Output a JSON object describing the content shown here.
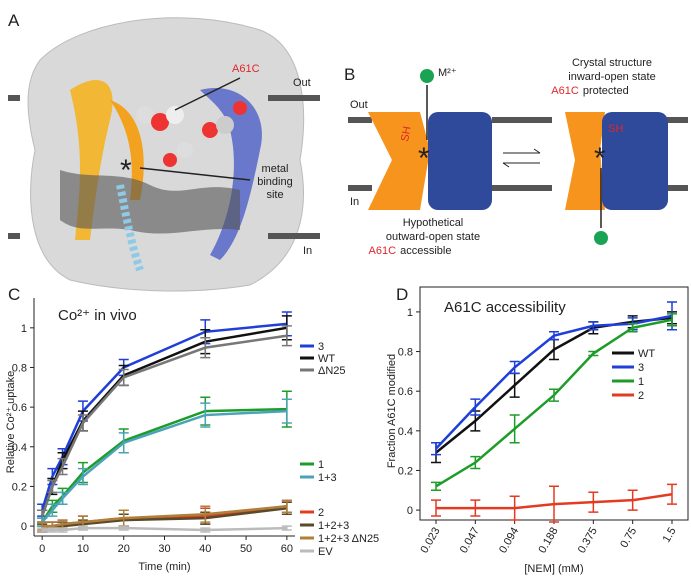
{
  "panels": {
    "A": {
      "letter": "A",
      "out": "Out",
      "in": "In",
      "mutant": "A61C",
      "asterisk": "*",
      "site": [
        "metal",
        "binding",
        "site"
      ]
    },
    "B": {
      "letter": "B",
      "out": "Out",
      "in": "In",
      "ion": "M²⁺",
      "sh": [
        "SH",
        "SH"
      ],
      "asterisk": [
        "*",
        "*"
      ],
      "inward": [
        "Crystal structure",
        "inward-open state",
        "A61C",
        "protected"
      ],
      "outward": [
        "Hypothetical",
        "outward-open state",
        "A61C",
        "accessible"
      ]
    },
    "C": {
      "letter": "C"
    },
    "D": {
      "letter": "D"
    }
  },
  "chart_data": [
    {
      "type": "line",
      "title": "Co²⁺ in vivo",
      "x_label": "Time (min)",
      "y_label": "Relative Co²⁺ uptake",
      "x": [
        0,
        2.5,
        5,
        10,
        20,
        40,
        60
      ],
      "xlim": [
        -2,
        62
      ],
      "xticks": [
        0,
        10,
        20,
        30,
        40,
        50,
        60
      ],
      "ylim": [
        -0.05,
        1.1
      ],
      "yticks": [
        0,
        0.2,
        0.4,
        0.6,
        0.8,
        1
      ],
      "series": [
        {
          "name": "3",
          "color": "#1f3fd8",
          "values": [
            0.08,
            0.25,
            0.35,
            0.58,
            0.8,
            0.98,
            1.02
          ],
          "errors": [
            0.03,
            0.04,
            0.04,
            0.05,
            0.04,
            0.06,
            0.06
          ]
        },
        {
          "name": "WT",
          "color": "#111111",
          "values": [
            0.05,
            0.2,
            0.33,
            0.53,
            0.76,
            0.93,
            1.0
          ],
          "errors": [
            0.03,
            0.04,
            0.04,
            0.05,
            0.05,
            0.06,
            0.06
          ]
        },
        {
          "name": "ΔN25",
          "color": "#777777",
          "values": [
            0.05,
            0.2,
            0.3,
            0.52,
            0.75,
            0.9,
            0.96
          ],
          "errors": [
            0.03,
            0.03,
            0.04,
            0.04,
            0.04,
            0.05,
            0.05
          ]
        },
        {
          "name": "1",
          "color": "#1e9c2a",
          "values": [
            0.02,
            0.1,
            0.15,
            0.27,
            0.43,
            0.58,
            0.59
          ],
          "errors": [
            0.02,
            0.03,
            0.04,
            0.05,
            0.06,
            0.07,
            0.09
          ]
        },
        {
          "name": "1+3",
          "color": "#4aa3b8",
          "values": [
            0.02,
            0.08,
            0.14,
            0.25,
            0.42,
            0.56,
            0.58
          ],
          "errors": [
            0.02,
            0.03,
            0.03,
            0.04,
            0.05,
            0.06,
            0.06
          ]
        },
        {
          "name": "2",
          "color": "#e33b22",
          "values": [
            -0.01,
            0,
            0.01,
            0.02,
            0.04,
            0.05,
            0.1
          ],
          "errors": [
            0.02,
            0.02,
            0.02,
            0.03,
            0.04,
            0.04,
            0.03
          ]
        },
        {
          "name": "1+2+3",
          "color": "#5a4a2a",
          "values": [
            -0.01,
            0,
            0,
            0.01,
            0.03,
            0.04,
            0.09
          ],
          "errors": [
            0.02,
            0.02,
            0.02,
            0.02,
            0.03,
            0.03,
            0.03
          ]
        },
        {
          "name": "1+2+3 ΔN25",
          "color": "#b07f3a",
          "values": [
            0,
            0,
            0.01,
            0.02,
            0.04,
            0.06,
            0.1
          ],
          "errors": [
            0.02,
            0.02,
            0.02,
            0.03,
            0.04,
            0.04,
            0.03
          ]
        },
        {
          "name": "EV",
          "color": "#bbbbbb",
          "values": [
            -0.02,
            -0.02,
            -0.02,
            -0.01,
            -0.01,
            -0.02,
            -0.01
          ],
          "errors": [
            0.01,
            0.01,
            0.01,
            0.01,
            0.01,
            0.01,
            0.01
          ]
        }
      ]
    },
    {
      "type": "line",
      "title": "A61C accessibility",
      "x_label": "[NEM] (mM)",
      "y_label": "Fraction A61C modified",
      "categories": [
        "0.023",
        "0.047",
        "0.094",
        "0.188",
        "0.375",
        "0.75",
        "1.5"
      ],
      "ylim": [
        -0.05,
        1.05
      ],
      "yticks": [
        0,
        0.2,
        0.4,
        0.6,
        0.8,
        1
      ],
      "series": [
        {
          "name": "WT",
          "color": "#111111",
          "values": [
            0.29,
            0.45,
            0.63,
            0.81,
            0.92,
            0.95,
            0.97
          ],
          "errors": [
            0.05,
            0.05,
            0.06,
            0.05,
            0.03,
            0.03,
            0.03
          ]
        },
        {
          "name": "3",
          "color": "#1f3fd8",
          "values": [
            0.31,
            0.52,
            0.72,
            0.88,
            0.93,
            0.94,
            0.98
          ],
          "errors": [
            0.03,
            0.04,
            0.03,
            0.02,
            0.02,
            0.03,
            0.07
          ]
        },
        {
          "name": "1",
          "color": "#1e9c2a",
          "values": [
            0.12,
            0.24,
            0.41,
            0.58,
            0.79,
            0.92,
            0.96
          ],
          "errors": [
            0.02,
            0.03,
            0.07,
            0.03,
            0.01,
            0.02,
            0.03
          ]
        },
        {
          "name": "2",
          "color": "#e33b22",
          "values": [
            0.01,
            0.01,
            0.01,
            0.03,
            0.04,
            0.05,
            0.08
          ],
          "errors": [
            0.04,
            0.04,
            0.06,
            0.09,
            0.05,
            0.05,
            0.05
          ]
        }
      ]
    }
  ]
}
